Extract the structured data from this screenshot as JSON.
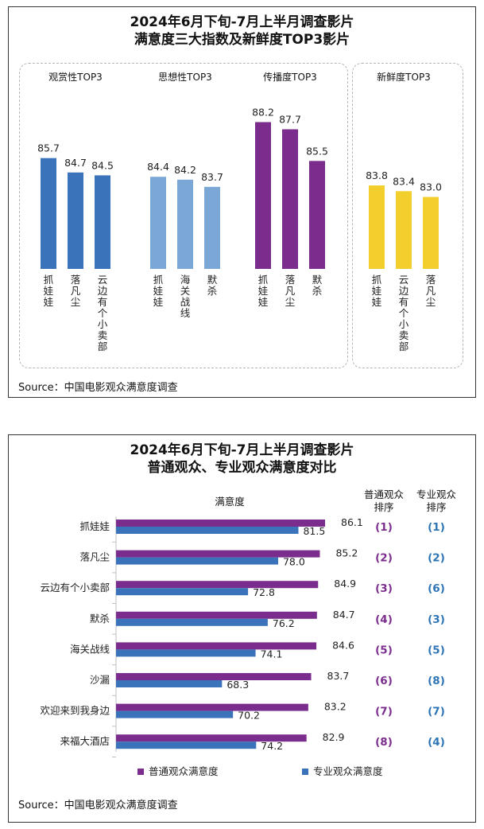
{
  "panel1": {
    "title_line1": "2024年6月下旬-7月上半月调查影片",
    "title_line2": "满意度三大指数及新鲜度TOP3影片",
    "source": "Source：中国电影观众满意度调查",
    "chart_data": {
      "type": "bar",
      "title": "2024年6月下旬-7月上半月调查影片满意度三大指数及新鲜度TOP3影片",
      "groups": [
        {
          "name": "观赏性TOP3",
          "color": "#3b73ba",
          "categories": [
            "抓娃娃",
            "落凡尘",
            "云边有个小卖部"
          ],
          "values": [
            85.7,
            84.7,
            84.5
          ]
        },
        {
          "name": "思想性TOP3",
          "color": "#7ba7d7",
          "categories": [
            "抓娃娃",
            "海关战线",
            "默杀"
          ],
          "values": [
            84.4,
            84.2,
            83.7
          ]
        },
        {
          "name": "传播度TOP3",
          "color": "#7b2d8e",
          "categories": [
            "抓娃娃",
            "落凡尘",
            "默杀"
          ],
          "values": [
            88.2,
            87.7,
            85.5
          ]
        },
        {
          "name": "新鲜度TOP3",
          "color": "#f2cf2c",
          "categories": [
            "抓娃娃",
            "云边有个小卖部",
            "落凡尘"
          ],
          "values": [
            83.8,
            83.4,
            83.0
          ]
        }
      ]
    }
  },
  "panel2": {
    "title_line1": "2024年6月下旬-7月上半月调查影片",
    "title_line2": "普通观众、专业观众满意度对比",
    "header_satisfaction": "满意度",
    "header_rank_general": "普通观众\n排序",
    "header_rank_pro": "专业观众\n排序",
    "source": "Source：中国电影观众满意度调查",
    "chart_data": {
      "type": "bar",
      "orientation": "horizontal",
      "categories": [
        "抓娃娃",
        "落凡尘",
        "云边有个小卖部",
        "默杀",
        "海关战线",
        "沙漏",
        "欢迎来到我身边",
        "来福大酒店"
      ],
      "series": [
        {
          "name": "普通观众满意度",
          "color": "#7b2d8e",
          "values": [
            86.1,
            85.2,
            84.9,
            84.7,
            84.6,
            83.7,
            83.2,
            82.9
          ]
        },
        {
          "name": "专业观众满意度",
          "color": "#3b73ba",
          "values": [
            81.5,
            78.0,
            72.8,
            76.2,
            74.1,
            68.3,
            70.2,
            74.2
          ]
        }
      ],
      "rank_general": [
        "(1)",
        "(2)",
        "(3)",
        "(4)",
        "(5)",
        "(6)",
        "(7)",
        "(8)"
      ],
      "rank_pro": [
        "(1)",
        "(2)",
        "(6)",
        "(3)",
        "(5)",
        "(8)",
        "(7)",
        "(4)"
      ],
      "rank_general_color": "#7b2d8e",
      "rank_pro_color": "#2e75b6",
      "legend": [
        "普通观众满意度",
        "专业观众满意度"
      ]
    }
  }
}
